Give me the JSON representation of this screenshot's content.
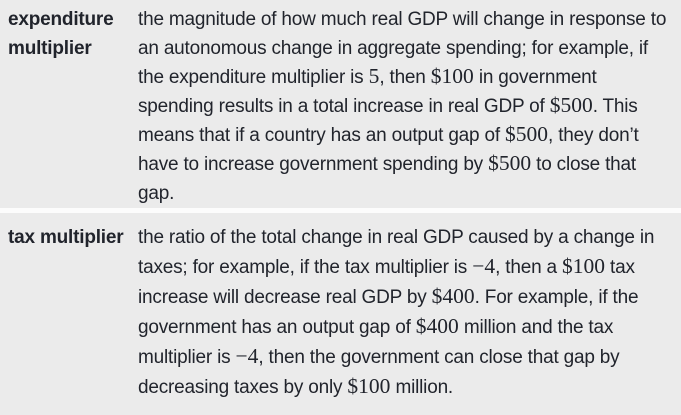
{
  "colors": {
    "background": "#ebebeb",
    "divider": "#fcfcfc",
    "text": "#21242c"
  },
  "table": {
    "rows": [
      {
        "term": "expenditure multiplier",
        "definition": [
          {
            "t": "text",
            "v": "the magnitude of how much real GDP will change in response to an autonomous change in aggregate spending; for example, if the expenditure multiplier is "
          },
          {
            "t": "math",
            "v": "5"
          },
          {
            "t": "text",
            "v": ", then "
          },
          {
            "t": "math",
            "v": "$100"
          },
          {
            "t": "text",
            "v": " in government spending results in a total increase in real GDP of "
          },
          {
            "t": "math",
            "v": "$500"
          },
          {
            "t": "text",
            "v": ". This means that if a country has an output gap of "
          },
          {
            "t": "math",
            "v": "$500"
          },
          {
            "t": "text",
            "v": ", they don’t have to increase government spending by "
          },
          {
            "t": "math",
            "v": "$500"
          },
          {
            "t": "text",
            "v": " to close that gap."
          }
        ]
      },
      {
        "term": "tax multiplier",
        "definition": [
          {
            "t": "text",
            "v": "the ratio of the total change in real GDP caused by a change in taxes; for example, if the tax multiplier is "
          },
          {
            "t": "math",
            "v": "−4"
          },
          {
            "t": "text",
            "v": ", then a "
          },
          {
            "t": "math",
            "v": "$100"
          },
          {
            "t": "text",
            "v": " tax increase will decrease real GDP by "
          },
          {
            "t": "math",
            "v": "$400"
          },
          {
            "t": "text",
            "v": ". For example, if the government has an output gap of "
          },
          {
            "t": "math",
            "v": "$400"
          },
          {
            "t": "text",
            "v": " million and the tax multiplier is "
          },
          {
            "t": "math",
            "v": "−4"
          },
          {
            "t": "text",
            "v": ", then the government can close that gap by decreasing taxes by only "
          },
          {
            "t": "math",
            "v": "$100"
          },
          {
            "t": "text",
            "v": " million."
          }
        ]
      }
    ]
  }
}
